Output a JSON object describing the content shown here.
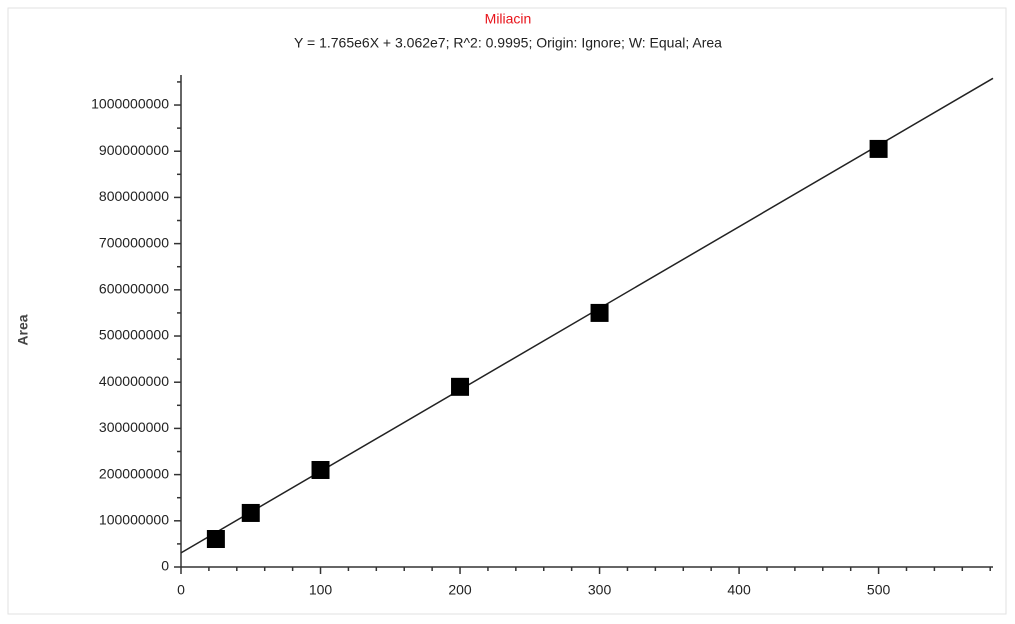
{
  "chart_data": {
    "type": "scatter",
    "title": "Miliacin",
    "subtitle": "Y = 1.765e6X + 3.062e7; R^2: 0.9995; Origin: Ignore; W: Equal; Area",
    "ylabel": "Area",
    "x": [
      25,
      50,
      100,
      200,
      300,
      500
    ],
    "values": [
      60600000,
      117000000,
      210000000,
      390000000,
      550000000,
      905000000
    ],
    "color": "#000000",
    "fit": {
      "x": [
        0,
        582
      ],
      "values": [
        30620000,
        1057850000
      ],
      "color": "#222222"
    },
    "xlim": [
      0,
      582
    ],
    "xticks": [
      0,
      100,
      200,
      300,
      400,
      500
    ],
    "xminorticks": [
      20,
      40,
      60,
      80,
      120,
      140,
      160,
      180,
      220,
      240,
      260,
      280,
      320,
      340,
      360,
      380,
      420,
      440,
      460,
      480,
      520,
      540,
      560,
      580
    ],
    "ylim": [
      0,
      1065000000
    ],
    "yticks": [
      0,
      100000000,
      200000000,
      300000000,
      400000000,
      500000000,
      600000000,
      700000000,
      800000000,
      900000000,
      1000000000
    ],
    "yminorticks": [
      50000000,
      150000000,
      250000000,
      350000000,
      450000000,
      550000000,
      650000000,
      750000000,
      850000000,
      950000000,
      1050000000
    ],
    "grid": false
  }
}
